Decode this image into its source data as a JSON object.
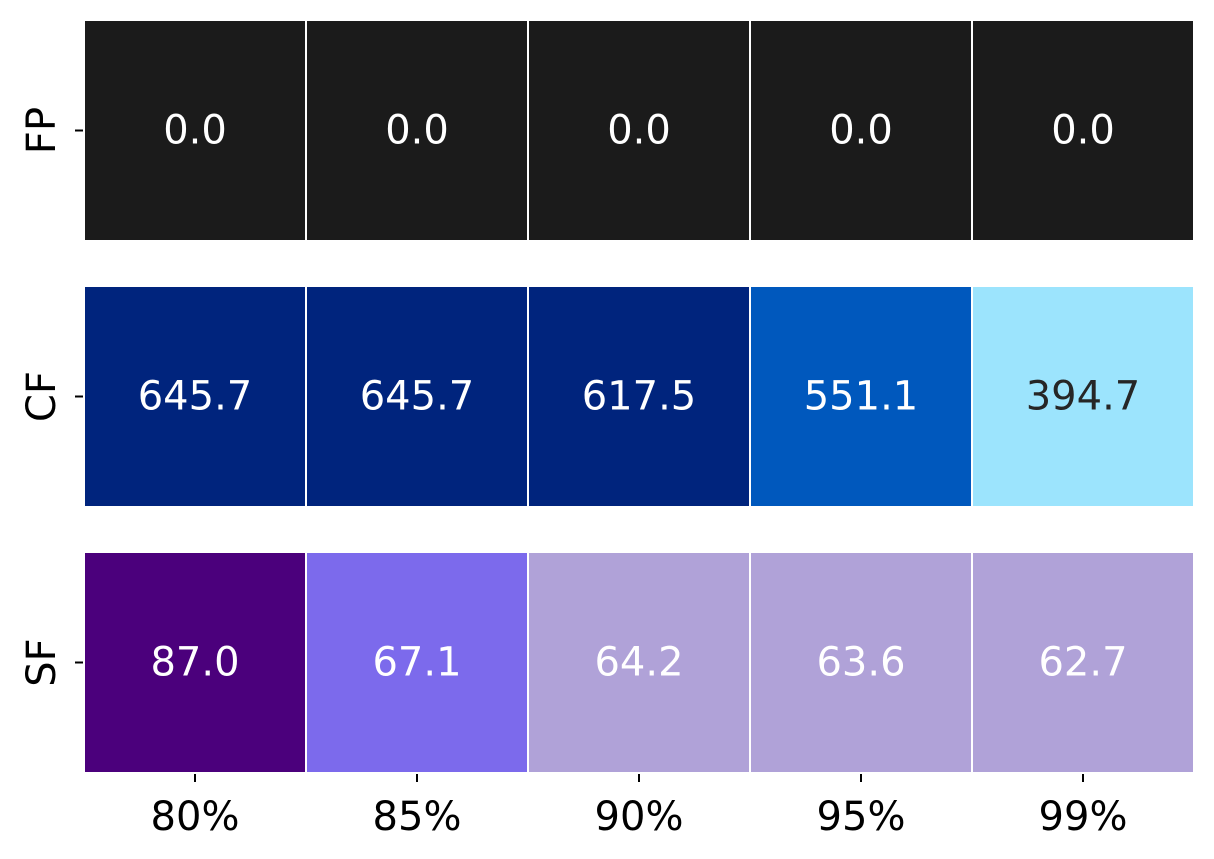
{
  "chart_data": {
    "type": "heatmap",
    "title": "",
    "xlabel": "",
    "ylabel": "",
    "x_categories": [
      "80%",
      "85%",
      "90%",
      "95%",
      "99%"
    ],
    "rows": [
      {
        "name": "FP",
        "values": [
          0.0,
          0.0,
          0.0,
          0.0,
          0.0
        ],
        "labels": [
          "0.0",
          "0.0",
          "0.0",
          "0.0",
          "0.0"
        ],
        "colors": [
          "#1b1b1b",
          "#1b1b1b",
          "#1b1b1b",
          "#1b1b1b",
          "#1b1b1b"
        ],
        "text_colors": [
          "#ffffff",
          "#ffffff",
          "#ffffff",
          "#ffffff",
          "#ffffff"
        ]
      },
      {
        "name": "CF",
        "values": [
          645.7,
          645.7,
          617.5,
          551.1,
          394.7
        ],
        "labels": [
          "645.7",
          "645.7",
          "617.5",
          "551.1",
          "394.7"
        ],
        "colors": [
          "#00247d",
          "#00247d",
          "#00247d",
          "#0058bd",
          "#9ce4fd"
        ],
        "text_colors": [
          "#ffffff",
          "#ffffff",
          "#ffffff",
          "#ffffff",
          "#262626"
        ]
      },
      {
        "name": "SF",
        "values": [
          87.0,
          67.1,
          64.2,
          63.6,
          62.7
        ],
        "labels": [
          "87.0",
          "67.1",
          "64.2",
          "63.6",
          "62.7"
        ],
        "colors": [
          "#4b007c",
          "#7c6aec",
          "#b0a2d8",
          "#b0a2d8",
          "#b0a2d8"
        ],
        "text_colors": [
          "#ffffff",
          "#ffffff",
          "#ffffff",
          "#ffffff",
          "#ffffff"
        ]
      }
    ],
    "grid": false,
    "legend": "none",
    "colorbar": false
  }
}
